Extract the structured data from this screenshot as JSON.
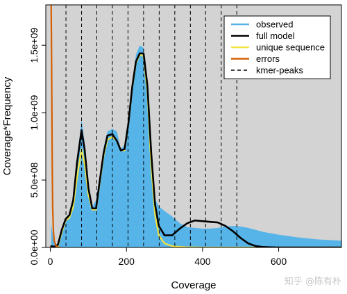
{
  "chart_data": {
    "type": "line",
    "xlabel": "Coverage",
    "ylabel": "Coverage*Frequency",
    "xlim": [
      -12,
      765
    ],
    "ylim": [
      0,
      1800000000.0
    ],
    "x_ticks": [
      0,
      200,
      400,
      600
    ],
    "x_tick_labels": [
      "0",
      "200",
      "400",
      "600"
    ],
    "y_ticks": [
      0,
      500000000.0,
      1000000000.0,
      1500000000.0
    ],
    "y_tick_labels": [
      "0.0e+00",
      "5.0e+08",
      "1.0e+09",
      "1.5e+09"
    ],
    "background": "#d3d3d3",
    "legend_position": "top-right",
    "legend": [
      {
        "label": "observed",
        "color": "#56b4e9",
        "style": "solid"
      },
      {
        "label": "full model",
        "color": "#000000",
        "style": "solid"
      },
      {
        "label": "unique sequence",
        "color": "#f0e442",
        "style": "solid"
      },
      {
        "label": "errors",
        "color": "#d55e00",
        "style": "solid"
      },
      {
        "label": "kmer-peaks",
        "color": "#000000",
        "style": "dashed"
      }
    ],
    "kmer_peaks": [
      41,
      82,
      122,
      163,
      204,
      245,
      286,
      327,
      368,
      408,
      449,
      490
    ],
    "series": [
      {
        "name": "observed",
        "color": "#56b4e9",
        "x": [
          2,
          8,
          15,
          22,
          30,
          40,
          50,
          60,
          70,
          82,
          90,
          100,
          110,
          120,
          130,
          140,
          150,
          163,
          175,
          185,
          195,
          205,
          215,
          225,
          235,
          245,
          255,
          265,
          275,
          285,
          300,
          320,
          340,
          360,
          380,
          400,
          420,
          440,
          460,
          480,
          500,
          520,
          540,
          560,
          580,
          600,
          650,
          700,
          765
        ],
        "y": [
          180000000.0,
          60000000.0,
          20000000.0,
          40000000.0,
          130000000.0,
          220000000.0,
          250000000.0,
          350000000.0,
          650000000.0,
          950000000.0,
          780000000.0,
          440000000.0,
          300000000.0,
          350000000.0,
          540000000.0,
          740000000.0,
          860000000.0,
          880000000.0,
          860000000.0,
          730000000.0,
          760000000.0,
          960000000.0,
          1220000000.0,
          1430000000.0,
          1500000000.0,
          1480000000.0,
          1100000000.0,
          600000000.0,
          360000000.0,
          305000000.0,
          270000000.0,
          230000000.0,
          180000000.0,
          150000000.0,
          145000000.0,
          140000000.0,
          140000000.0,
          145000000.0,
          155000000.0,
          160000000.0,
          155000000.0,
          145000000.0,
          130000000.0,
          115000000.0,
          105000000.0,
          95000000.0,
          75000000.0,
          60000000.0,
          50000000.0
        ]
      },
      {
        "name": "full model",
        "color": "#000000",
        "x": [
          2,
          10,
          20,
          30,
          40,
          50,
          60,
          70,
          82,
          90,
          100,
          110,
          120,
          130,
          140,
          150,
          163,
          175,
          185,
          195,
          205,
          215,
          225,
          235,
          245,
          255,
          265,
          275,
          285,
          300,
          320,
          340,
          360,
          380,
          400,
          420,
          440,
          460,
          480,
          500,
          520,
          540,
          560,
          580,
          600,
          650,
          700,
          765
        ],
        "y": [
          10000000.0,
          5000000.0,
          20000000.0,
          130000000.0,
          210000000.0,
          240000000.0,
          350000000.0,
          630000000.0,
          870000000.0,
          730000000.0,
          440000000.0,
          290000000.0,
          290000000.0,
          500000000.0,
          700000000.0,
          830000000.0,
          840000000.0,
          790000000.0,
          720000000.0,
          730000000.0,
          920000000.0,
          1190000000.0,
          1380000000.0,
          1440000000.0,
          1440000000.0,
          1200000000.0,
          700000000.0,
          320000000.0,
          160000000.0,
          90000000.0,
          90000000.0,
          140000000.0,
          180000000.0,
          200000000.0,
          195000000.0,
          190000000.0,
          185000000.0,
          160000000.0,
          120000000.0,
          70000000.0,
          30000000.0,
          10000000.0,
          3000000.0,
          1000000.0,
          0,
          0,
          0,
          0
        ]
      },
      {
        "name": "unique sequence",
        "color": "#f0e442",
        "x": [
          2,
          10,
          20,
          30,
          40,
          50,
          60,
          70,
          82,
          90,
          100,
          110,
          120,
          130,
          140,
          150,
          163,
          175,
          185,
          195,
          205,
          215,
          225,
          235,
          245,
          255,
          265,
          275,
          285,
          300,
          320,
          340,
          360,
          400,
          500,
          600,
          765
        ],
        "y": [
          0,
          0,
          10000000.0,
          110000000.0,
          200000000.0,
          220000000.0,
          300000000.0,
          520000000.0,
          730000000.0,
          620000000.0,
          390000000.0,
          280000000.0,
          280000000.0,
          480000000.0,
          680000000.0,
          800000000.0,
          820000000.0,
          790000000.0,
          720000000.0,
          720000000.0,
          910000000.0,
          1180000000.0,
          1370000000.0,
          1430000000.0,
          1420000000.0,
          1150000000.0,
          600000000.0,
          240000000.0,
          90000000.0,
          30000000.0,
          10000000.0,
          5000000.0,
          2000000.0,
          0,
          0,
          0,
          0
        ]
      },
      {
        "name": "errors",
        "color": "#d55e00",
        "x": [
          1,
          2,
          3,
          4,
          5,
          6,
          8,
          10,
          15,
          20,
          25
        ],
        "y": [
          1800000000.0,
          1800000000.0,
          1500000000.0,
          1000000000.0,
          600000000.0,
          300000000.0,
          120000000.0,
          50000000.0,
          10000000.0,
          2000000.0,
          0
        ]
      }
    ]
  },
  "watermark": "知乎 @陈有朴"
}
